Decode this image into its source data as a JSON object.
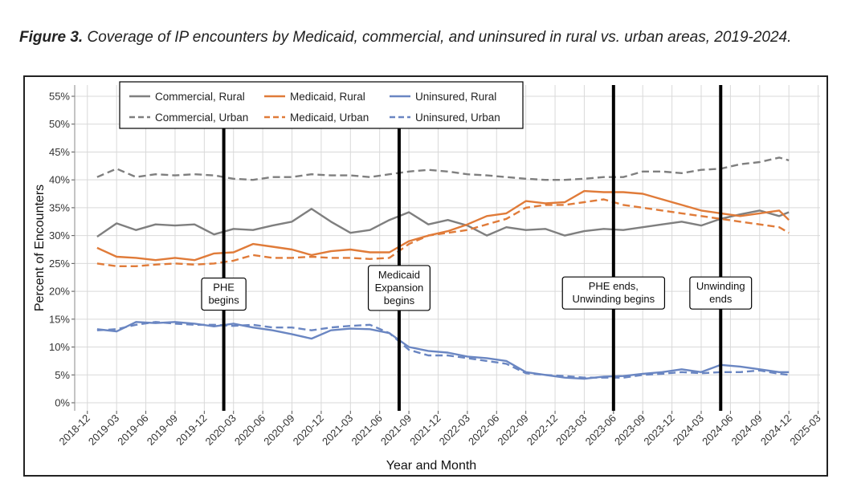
{
  "caption": {
    "label": "Figure 3.",
    "text": " Coverage of IP encounters by Medicaid, commercial, and uninsured in rural vs. urban areas, 2019-2024."
  },
  "chart_data": {
    "type": "line",
    "title": "Coverage of IP encounters by Medicaid, commercial, and uninsured in rural vs. urban areas, 2019-2024",
    "xlabel": "Year and Month",
    "ylabel": "Percent of Encounters",
    "xlim": [
      "2018-12",
      "2025-03"
    ],
    "ylim": [
      0,
      55
    ],
    "x_ticks": [
      "2018-12",
      "2019-03",
      "2019-06",
      "2019-09",
      "2019-12",
      "2020-03",
      "2020-06",
      "2020-09",
      "2020-12",
      "2021-03",
      "2021-06",
      "2021-09",
      "2021-12",
      "2022-03",
      "2022-06",
      "2022-09",
      "2022-12",
      "2023-03",
      "2023-06",
      "2023-09",
      "2023-12",
      "2024-03",
      "2024-06",
      "2024-09",
      "2024-12",
      "2025-03"
    ],
    "y_ticks": [
      0,
      5,
      10,
      15,
      20,
      25,
      30,
      35,
      40,
      45,
      50,
      55
    ],
    "y_tick_labels": [
      "0%",
      "5%",
      "10%",
      "15%",
      "20%",
      "25%",
      "30%",
      "35%",
      "40%",
      "45%",
      "50%",
      "55%"
    ],
    "grid": true,
    "legend_position": "top-left",
    "series_x": [
      "2019-01",
      "2019-03",
      "2019-05",
      "2019-07",
      "2019-09",
      "2019-11",
      "2020-01",
      "2020-03",
      "2020-05",
      "2020-07",
      "2020-09",
      "2020-11",
      "2021-01",
      "2021-03",
      "2021-05",
      "2021-07",
      "2021-09",
      "2021-11",
      "2022-01",
      "2022-03",
      "2022-05",
      "2022-07",
      "2022-09",
      "2022-11",
      "2023-01",
      "2023-03",
      "2023-05",
      "2023-07",
      "2023-09",
      "2023-11",
      "2024-01",
      "2024-03",
      "2024-05",
      "2024-07",
      "2024-09",
      "2024-11",
      "2024-12"
    ],
    "series": [
      {
        "name": "Commercial, Rural",
        "color": "#7f7f7f",
        "dash": "solid",
        "values": [
          29.8,
          32.2,
          31.0,
          32.0,
          31.8,
          32.0,
          30.2,
          31.2,
          31.0,
          31.8,
          32.5,
          34.8,
          32.5,
          30.5,
          31.0,
          32.8,
          34.2,
          32.0,
          32.8,
          31.8,
          30.0,
          31.5,
          31.0,
          31.2,
          30.0,
          30.8,
          31.2,
          31.0,
          31.5,
          32.0,
          32.5,
          31.8,
          33.0,
          33.8,
          34.5,
          33.5,
          34.2
        ]
      },
      {
        "name": "Medicaid, Rural",
        "color": "#e07b39",
        "dash": "solid",
        "values": [
          27.8,
          26.2,
          26.0,
          25.6,
          26.0,
          25.6,
          26.8,
          27.0,
          28.5,
          28.0,
          27.5,
          26.5,
          27.2,
          27.5,
          27.0,
          27.0,
          29.0,
          30.0,
          30.8,
          32.0,
          33.5,
          34.0,
          36.2,
          35.8,
          36.0,
          38.0,
          37.8,
          37.8,
          37.5,
          36.5,
          35.5,
          34.5,
          34.0,
          33.5,
          34.0,
          34.5,
          32.8
        ]
      },
      {
        "name": "Uninsured, Rural",
        "color": "#6a86c2",
        "dash": "solid",
        "values": [
          13.2,
          12.8,
          14.5,
          14.3,
          14.5,
          14.2,
          13.7,
          14.2,
          13.5,
          13.0,
          12.3,
          11.5,
          13.0,
          13.3,
          13.2,
          12.5,
          10.0,
          9.3,
          9.0,
          8.3,
          8.0,
          7.5,
          5.5,
          5.0,
          4.5,
          4.3,
          4.7,
          4.8,
          5.2,
          5.5,
          6.0,
          5.5,
          6.8,
          6.5,
          6.0,
          5.5,
          5.5
        ]
      },
      {
        "name": "Commercial, Urban",
        "color": "#7f7f7f",
        "dash": "dashed",
        "values": [
          40.5,
          42.0,
          40.5,
          41.0,
          40.8,
          41.0,
          40.8,
          40.2,
          40.0,
          40.5,
          40.5,
          41.0,
          40.8,
          40.8,
          40.5,
          41.0,
          41.5,
          41.8,
          41.5,
          41.0,
          40.8,
          40.5,
          40.2,
          40.0,
          40.0,
          40.2,
          40.5,
          40.5,
          41.5,
          41.5,
          41.2,
          41.8,
          42.0,
          42.8,
          43.2,
          44.0,
          43.5
        ]
      },
      {
        "name": "Medicaid, Urban",
        "color": "#e07b39",
        "dash": "dashed",
        "values": [
          25.0,
          24.5,
          24.5,
          24.8,
          25.0,
          24.8,
          25.0,
          25.5,
          26.5,
          26.0,
          26.0,
          26.2,
          26.0,
          26.0,
          25.8,
          26.0,
          28.5,
          30.0,
          30.5,
          31.0,
          32.0,
          33.0,
          35.0,
          35.5,
          35.5,
          36.0,
          36.5,
          35.5,
          35.0,
          34.5,
          34.0,
          33.5,
          33.0,
          32.5,
          32.0,
          31.5,
          30.5
        ]
      },
      {
        "name": "Uninsured, Urban",
        "color": "#6a86c2",
        "dash": "dashed",
        "values": [
          13.0,
          13.2,
          14.0,
          14.5,
          14.2,
          14.0,
          14.0,
          13.8,
          14.0,
          13.5,
          13.5,
          13.0,
          13.5,
          13.8,
          14.0,
          12.5,
          9.5,
          8.5,
          8.5,
          8.0,
          7.5,
          7.0,
          5.3,
          5.0,
          4.8,
          4.5,
          4.5,
          4.5,
          5.0,
          5.2,
          5.5,
          5.3,
          5.5,
          5.5,
          5.8,
          5.2,
          5.0
        ]
      }
    ],
    "annotations": [
      {
        "x": "2020-02",
        "lines": [
          "PHE",
          "begins"
        ]
      },
      {
        "x": "2021-08",
        "lines": [
          "Medicaid",
          "Expansion",
          "begins"
        ]
      },
      {
        "x": "2023-06",
        "lines": [
          "PHE ends,",
          "Unwinding begins"
        ]
      },
      {
        "x": "2024-05",
        "lines": [
          "Unwinding",
          "ends"
        ]
      }
    ]
  }
}
